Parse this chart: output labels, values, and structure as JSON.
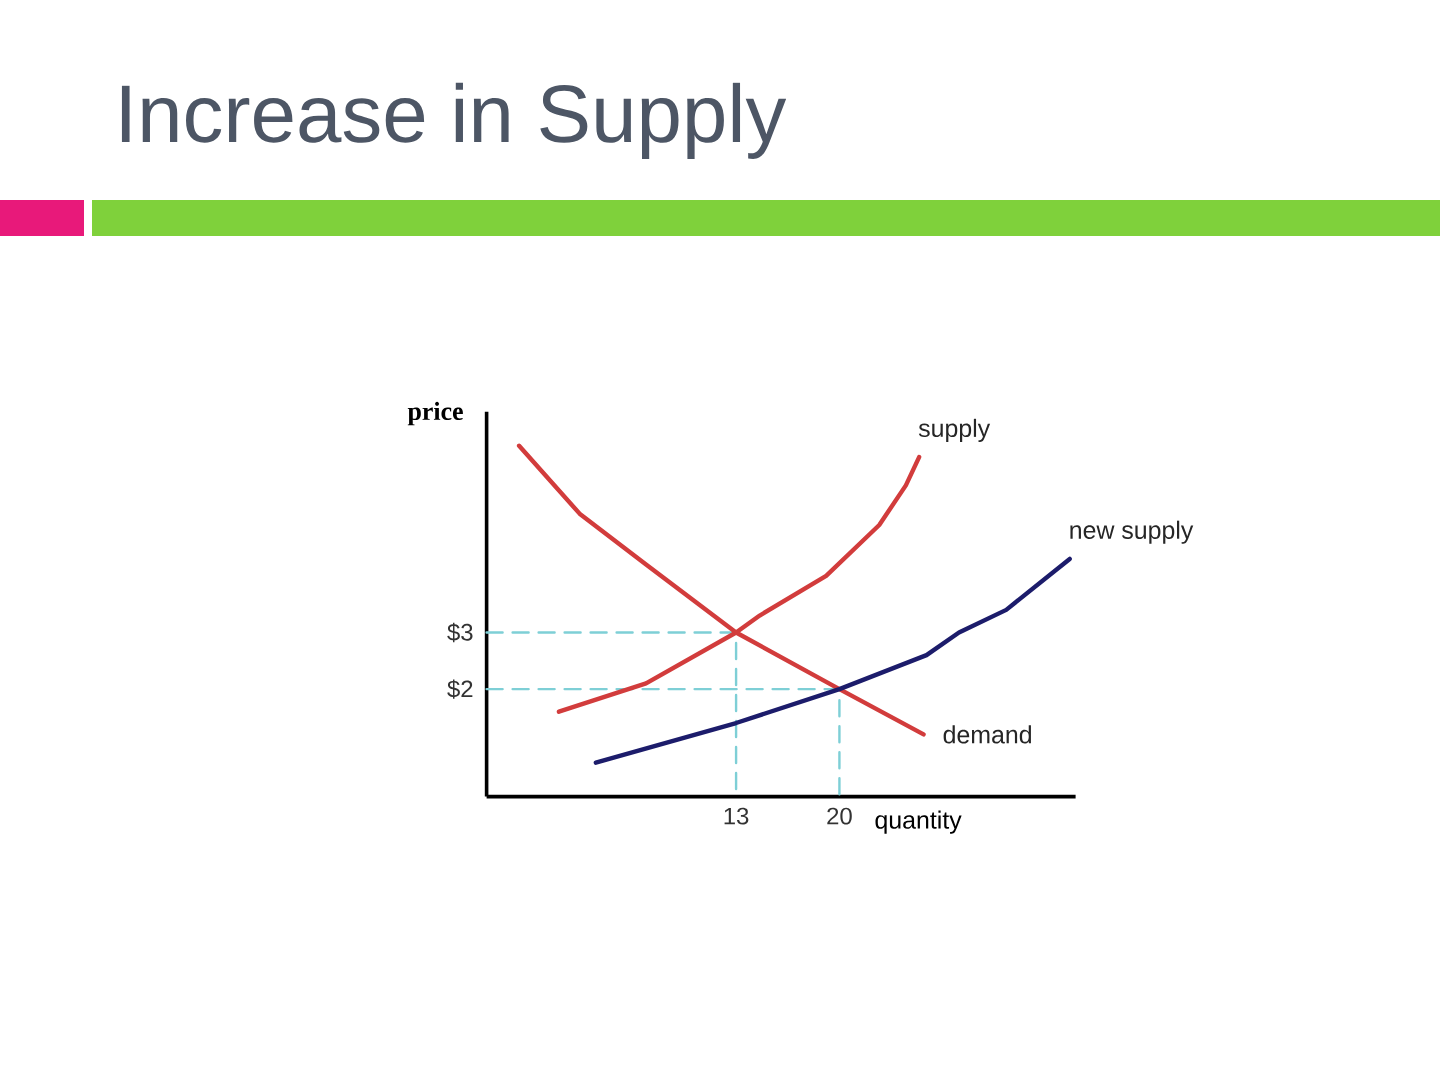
{
  "chart_data": {
    "type": "line",
    "title": "Increase in Supply",
    "xlabel": "quantity",
    "ylabel": "price",
    "xlim": [
      -3.9,
      36
    ],
    "ylim": [
      0.1,
      6.9
    ],
    "xticks": [
      13,
      20
    ],
    "yticks": [
      {
        "value": 2,
        "label": "$2"
      },
      {
        "value": 3,
        "label": "$3"
      }
    ],
    "series": [
      {
        "color": "#7ecfd6",
        "line_style": "dashed",
        "x": [
          -3.9,
          13,
          13
        ],
        "values": [
          3,
          3,
          0.1
        ]
      },
      {
        "color": "#7ecfd6",
        "line_style": "dashed",
        "x": [
          -3.9,
          20,
          20
        ],
        "values": [
          2,
          2,
          0.1
        ]
      },
      {
        "name": "supply",
        "color": "#d23c3c",
        "x": [
          1.0,
          6.9,
          13,
          14.6,
          19.1,
          22.7,
          24.5,
          25.4
        ],
        "values": [
          1.6,
          2.1,
          3,
          3.3,
          4.0,
          4.9,
          5.6,
          6.1
        ]
      },
      {
        "name": "demand",
        "color": "#d23c3c",
        "x": [
          -1.7,
          2.4,
          6.9,
          13,
          20,
          25.7
        ],
        "values": [
          6.3,
          5.1,
          4.2,
          3,
          2,
          1.2
        ]
      },
      {
        "name": "new supply",
        "color": "#1c1c6b",
        "x": [
          3.5,
          13,
          20,
          25.9,
          28.1,
          31.3,
          35.6
        ],
        "values": [
          0.7,
          1.4,
          2,
          2.6,
          3.0,
          3.4,
          4.3
        ]
      }
    ],
    "grid": false,
    "legend": false
  }
}
